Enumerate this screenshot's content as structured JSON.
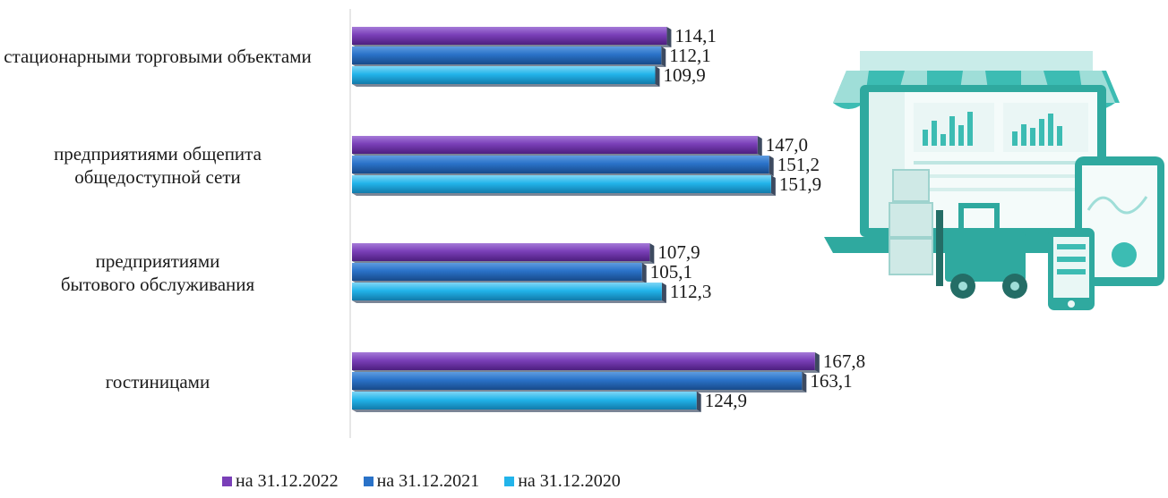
{
  "chart_data": {
    "type": "bar",
    "orientation": "horizontal",
    "title": "",
    "xlabel": "",
    "ylabel": "",
    "categories": [
      "стационарными торговыми объектами",
      "предприятиями общепита\nобщедоступной сети",
      "предприятиями\nбытового обслуживания",
      "гостиницами"
    ],
    "series": [
      {
        "name": "на 31.12.2022",
        "color": "#7a3fb8",
        "values": [
          114.1,
          147.0,
          107.9,
          167.8
        ],
        "labels": [
          "114,1",
          "147,0",
          "107,9",
          "167,8"
        ]
      },
      {
        "name": "на 31.12.2021",
        "color": "#2a72c8",
        "values": [
          112.1,
          151.2,
          105.1,
          163.1
        ],
        "labels": [
          "112,1",
          "151,2",
          "105,1",
          "163,1"
        ]
      },
      {
        "name": "на 31.12.2020",
        "color": "#22b4ea",
        "values": [
          109.9,
          151.9,
          112.3,
          124.9
        ],
        "labels": [
          "109,9",
          "151,9",
          "112,3",
          "124,9"
        ]
      }
    ],
    "xlim": [
      0,
      170
    ],
    "grid": false,
    "legend_position": "bottom-left"
  }
}
